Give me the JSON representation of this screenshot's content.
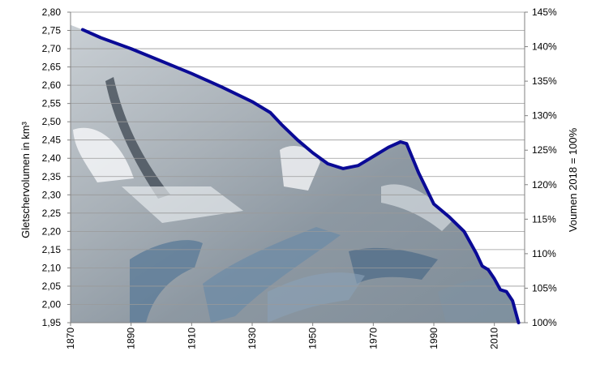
{
  "chart_data": {
    "type": "area",
    "title": "",
    "xlabel": "",
    "ylabel": "Gletschervolumen in km³",
    "y2label": "Voumen 2018 = 100%",
    "xlim": [
      1870,
      2020
    ],
    "ylim": [
      1.95,
      2.8
    ],
    "y2lim": [
      100,
      145
    ],
    "x_ticks": [
      "1870",
      "1890",
      "1910",
      "1930",
      "1950",
      "1970",
      "1990",
      "2010"
    ],
    "y_ticks": [
      "1,95",
      "2,00",
      "2,05",
      "2,10",
      "2,15",
      "2,20",
      "2,25",
      "2,30",
      "2,35",
      "2,40",
      "2,45",
      "2,50",
      "2,55",
      "2,60",
      "2,65",
      "2,70",
      "2,75",
      "2,80"
    ],
    "y2_ticks": [
      "100%",
      "105%",
      "110%",
      "115%",
      "120%",
      "125%",
      "130%",
      "135%",
      "140%",
      "145%"
    ],
    "grid": true,
    "background": "glacier photograph filling the area under the curve",
    "line_color": "#0a0a96",
    "series": [
      {
        "x": [
          1874,
          1880,
          1890,
          1900,
          1910,
          1920,
          1930,
          1936,
          1940,
          1945,
          1950,
          1955,
          1960,
          1965,
          1970,
          1975,
          1979,
          1981,
          1985,
          1990,
          1995,
          2000,
          2004,
          2006,
          2008,
          2010,
          2012,
          2014,
          2016,
          2018
        ],
        "values": [
          2.752,
          2.73,
          2.7,
          2.666,
          2.632,
          2.595,
          2.555,
          2.525,
          2.49,
          2.45,
          2.415,
          2.385,
          2.372,
          2.38,
          2.405,
          2.43,
          2.445,
          2.44,
          2.36,
          2.275,
          2.24,
          2.2,
          2.14,
          2.105,
          2.095,
          2.07,
          2.04,
          2.035,
          2.01,
          1.95
        ]
      }
    ]
  }
}
